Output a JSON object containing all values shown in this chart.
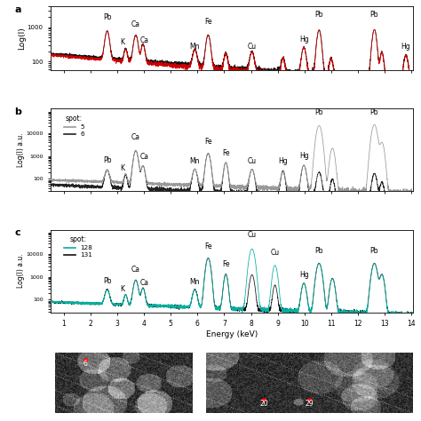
{
  "x_min": 0.5,
  "x_max": 14.0,
  "panel_a_color1": "#cc0000",
  "panel_a_color2": "#111111",
  "panel_b_color1": "#999999",
  "panel_b_color2": "#222222",
  "panel_c_color1": "#00b0a0",
  "panel_c_color2": "#111111",
  "xlabel": "Energy (keV)",
  "ylabel_a": "Log(I)",
  "ylabel_bc": "Log(I) a.u.",
  "xticks": [
    1,
    2,
    3,
    4,
    5,
    6,
    7,
    8,
    9,
    10,
    11,
    12,
    13,
    14
  ],
  "bg_color": "#ffffff",
  "label_fontsize": 5.5,
  "panel_label_fontsize": 8
}
